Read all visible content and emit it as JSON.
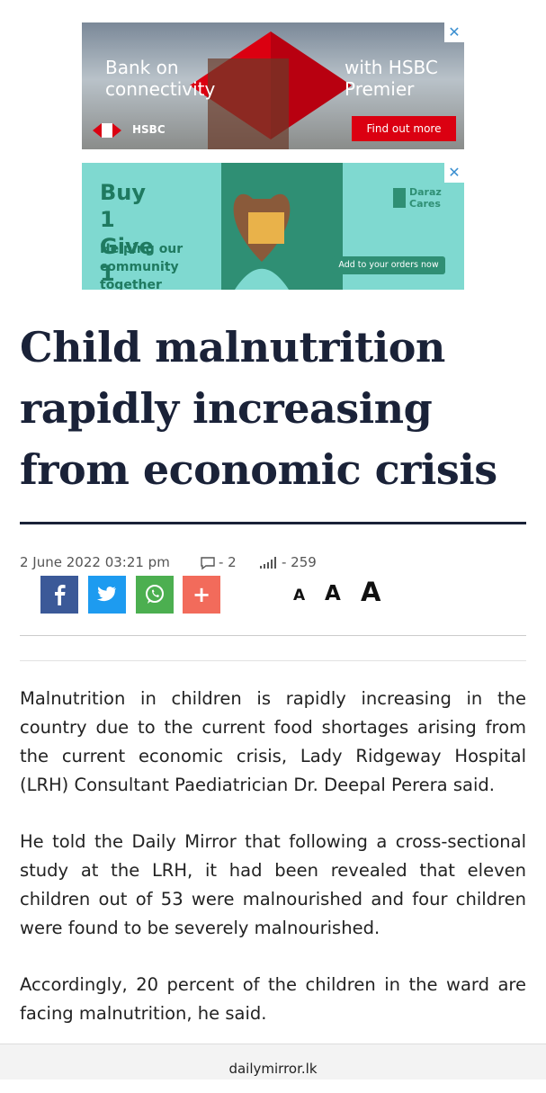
{
  "ads": [
    {
      "headline": "Bank on connectivity",
      "tagline": "with HSBC Premier",
      "brand": "HSBC",
      "cta": "Find out more"
    },
    {
      "headline": "Buy 1 Give 1",
      "tagline": "Helping our community together",
      "brand": "Daraz Cares",
      "cta": "Add to your orders now"
    }
  ],
  "article": {
    "title": "Child malnutrition rapidly increasing from economic crisis",
    "date": "2 June 2022 03:21 pm",
    "comments": "- 2",
    "views": "- 259",
    "share_more": "+",
    "font_sizes": [
      "A",
      "A",
      "A"
    ],
    "paragraphs": [
      "Malnutrition in children is rapidly increasing in the country due to the current food shortages arising from the current economic crisis, Lady Ridgeway Hospital (LRH) Consultant Paediatrician Dr. Deepal Perera said.",
      "He told the Daily Mirror that following a cross-sectional study at the LRH, it had been revealed that eleven children out of 53 were malnourished and four children were found to be severely malnourished.",
      "Accordingly, 20 percent of the children in the ward are facing malnutrition, he said."
    ]
  },
  "footer": {
    "domain": "dailymirror.lk"
  }
}
